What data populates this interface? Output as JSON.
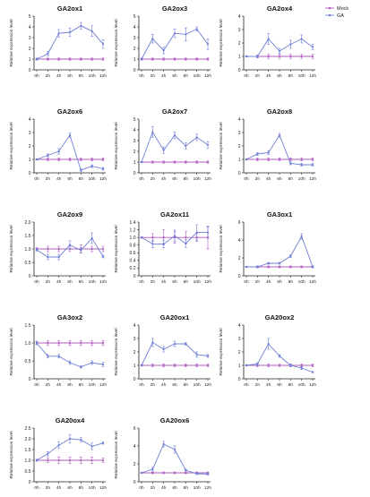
{
  "chart_data": {
    "type": "line",
    "x": [
      "0h",
      "2h",
      "4h",
      "6h",
      "8h",
      "10h",
      "12h"
    ],
    "ylabel": "Relative expression level",
    "legend": {
      "placement": "top-right",
      "entries": [
        {
          "name": "Mock",
          "color": "#b05cc2"
        },
        {
          "name": "GA",
          "color": "#6f7fd6"
        }
      ]
    },
    "panels": [
      {
        "title": "GA2ox1",
        "ylim": [
          0,
          5
        ],
        "yticks": [
          "0",
          "1",
          "2",
          "3",
          "4",
          "5"
        ],
        "mock": [
          1,
          1,
          1,
          1,
          1,
          1,
          1
        ],
        "ga": [
          1,
          1.5,
          3.4,
          3.5,
          4.1,
          3.6,
          2.4
        ],
        "ga_err": [
          0.1,
          0.2,
          0.35,
          0.4,
          0.3,
          0.5,
          0.4
        ],
        "mock_err": [
          0.05,
          0.1,
          0.1,
          0.1,
          0.1,
          0.1,
          0.1
        ]
      },
      {
        "title": "GA2ox3",
        "ylim": [
          0,
          5
        ],
        "yticks": [
          "0",
          "1",
          "2",
          "3",
          "4",
          "5"
        ],
        "mock": [
          1,
          1,
          1,
          1,
          1,
          1,
          1
        ],
        "ga": [
          1,
          2.9,
          1.8,
          3.4,
          3.3,
          3.8,
          2.4
        ],
        "ga_err": [
          0.1,
          0.4,
          0.3,
          0.4,
          0.6,
          0.2,
          0.5
        ],
        "mock_err": [
          0.05,
          0.1,
          0.1,
          0.1,
          0.1,
          0.1,
          0.1
        ]
      },
      {
        "title": "GA2ox4",
        "ylim": [
          0,
          4
        ],
        "yticks": [
          "0",
          "1",
          "2",
          "3",
          "4"
        ],
        "mock": [
          1,
          1,
          1,
          1,
          1,
          1,
          1
        ],
        "ga": [
          1,
          1,
          2.3,
          1.4,
          1.9,
          2.3,
          1.7
        ],
        "ga_err": [
          0.05,
          0.1,
          0.4,
          0.2,
          0.3,
          0.3,
          0.2
        ],
        "mock_err": [
          0.05,
          0.1,
          0.15,
          0.15,
          0.15,
          0.15,
          0.15
        ]
      },
      {
        "title": "GA2ox6",
        "ylim": [
          0,
          4
        ],
        "yticks": [
          "0",
          "1",
          "2",
          "3",
          "4"
        ],
        "mock": [
          1,
          1,
          1,
          1,
          1,
          1,
          1
        ],
        "ga": [
          1,
          1.3,
          1.6,
          2.8,
          0.2,
          0.5,
          0.3
        ],
        "ga_err": [
          0.05,
          0.1,
          0.2,
          0.15,
          0.1,
          0.1,
          0.1
        ],
        "mock_err": [
          0.05,
          0.1,
          0.1,
          0.1,
          0.1,
          0.1,
          0.1
        ]
      },
      {
        "title": "GA2ox7",
        "ylim": [
          0,
          5
        ],
        "yticks": [
          "0",
          "1",
          "2",
          "3",
          "4",
          "5"
        ],
        "mock": [
          1,
          1,
          1,
          1,
          1,
          1,
          1
        ],
        "ga": [
          1,
          3.8,
          2.1,
          3.5,
          2.5,
          3.3,
          2.6
        ],
        "ga_err": [
          0.05,
          0.5,
          0.3,
          0.3,
          0.3,
          0.3,
          0.3
        ],
        "mock_err": [
          0.05,
          0.1,
          0.1,
          0.1,
          0.1,
          0.1,
          0.1
        ]
      },
      {
        "title": "GA2ox8",
        "ylim": [
          0,
          4
        ],
        "yticks": [
          "0",
          "1",
          "2",
          "3",
          "4"
        ],
        "mock": [
          1,
          1,
          1,
          1,
          1,
          1,
          1
        ],
        "ga": [
          1,
          1.4,
          1.5,
          2.8,
          0.7,
          0.6,
          0.6
        ],
        "ga_err": [
          0.05,
          0.1,
          0.15,
          0.15,
          0.1,
          0.1,
          0.1
        ],
        "mock_err": [
          0.05,
          0.1,
          0.1,
          0.1,
          0.1,
          0.1,
          0.1
        ]
      },
      {
        "title": "GA2ox9",
        "ylim": [
          0,
          2.0
        ],
        "yticks": [
          "0",
          "0.5",
          "1.0",
          "1.5",
          "2.0"
        ],
        "mock": [
          1,
          1,
          1,
          1,
          1,
          1,
          1
        ],
        "ga": [
          0.97,
          0.7,
          0.7,
          1.15,
          0.95,
          1.4,
          0.72
        ],
        "ga_err": [
          0.05,
          0.1,
          0.1,
          0.15,
          0.1,
          0.2,
          0.05
        ],
        "mock_err": [
          0.05,
          0.1,
          0.1,
          0.1,
          0.15,
          0.1,
          0.1
        ]
      },
      {
        "title": "GA2ox11",
        "ylim": [
          0,
          1.4
        ],
        "yticks": [
          "0",
          "0.2",
          "0.4",
          "0.6",
          "0.8",
          "1.0",
          "1.2",
          "1.4"
        ],
        "mock": [
          1,
          1,
          1,
          1,
          1,
          1,
          1
        ],
        "ga": [
          1,
          0.83,
          0.83,
          1.04,
          0.84,
          1.13,
          1.13
        ],
        "ga_err": [
          0.02,
          0.1,
          0.1,
          0.15,
          0.1,
          0.2,
          0.15
        ],
        "mock_err": [
          0.02,
          0.1,
          0.2,
          0.15,
          0.15,
          0.1,
          0.3
        ]
      },
      {
        "title": "GA3ox1",
        "ylim": [
          0,
          6
        ],
        "yticks": [
          "0",
          "2",
          "4",
          "6"
        ],
        "mock": [
          1,
          1,
          1,
          1,
          1,
          1,
          1
        ],
        "ga": [
          1,
          1,
          1.4,
          1.4,
          2.2,
          4.4,
          1
        ],
        "ga_err": [
          0.05,
          0.1,
          0.1,
          0.1,
          0.15,
          0.3,
          0.1
        ],
        "mock_err": [
          0.05,
          0.1,
          0.1,
          0.1,
          0.1,
          0.1,
          0.1
        ]
      },
      {
        "title": "GA3ox2",
        "ylim": [
          0,
          1.5
        ],
        "yticks": [
          "0",
          "0.5",
          "1.0",
          "1.5"
        ],
        "mock": [
          1,
          1,
          1,
          1,
          1,
          1,
          1
        ],
        "ga": [
          1,
          0.63,
          0.63,
          0.45,
          0.33,
          0.45,
          0.4
        ],
        "ga_err": [
          0.05,
          0.05,
          0.05,
          0.05,
          0.03,
          0.05,
          0.06
        ],
        "mock_err": [
          0.03,
          0.07,
          0.07,
          0.07,
          0.07,
          0.07,
          0.07
        ]
      },
      {
        "title": "GA20ox1",
        "ylim": [
          0,
          4
        ],
        "yticks": [
          "0",
          "1",
          "2",
          "3",
          "4"
        ],
        "mock": [
          1,
          1,
          1,
          1,
          1,
          1,
          1
        ],
        "ga": [
          1,
          2.7,
          2.2,
          2.6,
          2.6,
          1.8,
          1.7
        ],
        "ga_err": [
          0.05,
          0.3,
          0.2,
          0.2,
          0.1,
          0.2,
          0.1
        ],
        "mock_err": [
          0.05,
          0.1,
          0.1,
          0.1,
          0.1,
          0.1,
          0.1
        ]
      },
      {
        "title": "GA20ox2",
        "ylim": [
          0,
          4
        ],
        "yticks": [
          "0",
          "1",
          "2",
          "3",
          "4"
        ],
        "mock": [
          1,
          1,
          1,
          1,
          1,
          1,
          1
        ],
        "ga": [
          1,
          1.1,
          2.6,
          1.7,
          1,
          0.8,
          0.5
        ],
        "ga_err": [
          0.05,
          0.1,
          0.4,
          0.1,
          0.1,
          0.1,
          0.05
        ],
        "mock_err": [
          0.05,
          0.1,
          0.1,
          0.1,
          0.1,
          0.1,
          0.1
        ]
      },
      {
        "title": "GA20ox4",
        "ylim": [
          0,
          2.5
        ],
        "yticks": [
          "0",
          "0.5",
          "1.0",
          "1.5",
          "2.0",
          "2.5"
        ],
        "mock": [
          1,
          1,
          1,
          1,
          1,
          1,
          1
        ],
        "ga": [
          1,
          1.3,
          1.7,
          2,
          1.95,
          1.65,
          1.8
        ],
        "ga_err": [
          0.05,
          0.1,
          0.15,
          0.2,
          0.1,
          0.15,
          0.05
        ],
        "mock_err": [
          0.05,
          0.1,
          0.15,
          0.15,
          0.15,
          0.15,
          0.1
        ]
      },
      {
        "title": "GA20ox6",
        "ylim": [
          0,
          6
        ],
        "yticks": [
          "0",
          "2",
          "4",
          "6"
        ],
        "mock": [
          1,
          1,
          1,
          1,
          1,
          1,
          1
        ],
        "ga": [
          1,
          1.4,
          4.2,
          3.6,
          1.3,
          0.9,
          0.85
        ],
        "ga_err": [
          0.05,
          0.2,
          0.3,
          0.4,
          0.1,
          0.1,
          0.1
        ],
        "mock_err": [
          0.05,
          0.1,
          0.1,
          0.1,
          0.1,
          0.1,
          0.1
        ]
      }
    ]
  }
}
